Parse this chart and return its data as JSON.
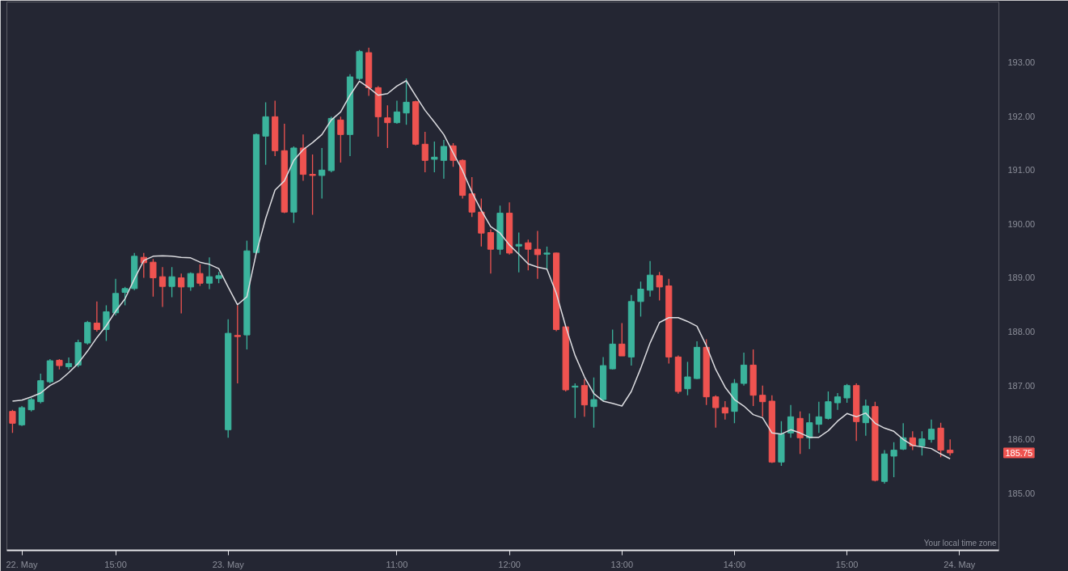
{
  "chart_data": {
    "type": "candlestick",
    "categories": [
      null,
      "22. May",
      null,
      null,
      null,
      null,
      null,
      null,
      null,
      null,
      null,
      "15:00",
      null,
      null,
      null,
      null,
      null,
      null,
      null,
      null,
      null,
      null,
      null,
      "23. May",
      null,
      null,
      null,
      null,
      null,
      null,
      null,
      null,
      null,
      null,
      null,
      null,
      null,
      null,
      null,
      null,
      null,
      "11:00",
      null,
      null,
      null,
      null,
      null,
      null,
      null,
      null,
      null,
      null,
      null,
      "12:00",
      null,
      null,
      null,
      null,
      null,
      null,
      null,
      null,
      null,
      null,
      null,
      "13:00",
      null,
      null,
      null,
      null,
      null,
      null,
      null,
      null,
      null,
      null,
      null,
      "14:00",
      null,
      null,
      null,
      null,
      null,
      null,
      null,
      null,
      null,
      null,
      null,
      "15:00",
      null,
      null,
      null,
      null,
      null,
      null,
      null,
      null,
      null,
      null,
      null,
      "24. May"
    ],
    "ohlc": [
      [
        186.52,
        186.55,
        186.12,
        186.3
      ],
      [
        186.27,
        186.62,
        186.25,
        186.59
      ],
      [
        186.55,
        186.77,
        186.52,
        186.74
      ],
      [
        186.7,
        187.22,
        186.67,
        187.09
      ],
      [
        187.07,
        187.49,
        187.04,
        187.46
      ],
      [
        187.47,
        187.49,
        187.3,
        187.37
      ],
      [
        187.35,
        187.52,
        187.3,
        187.41
      ],
      [
        187.38,
        187.85,
        187.34,
        187.8
      ],
      [
        187.79,
        188.2,
        187.76,
        188.17
      ],
      [
        188.16,
        188.56,
        188.0,
        188.04
      ],
      [
        188.04,
        188.49,
        187.83,
        188.37
      ],
      [
        188.35,
        188.98,
        188.3,
        188.71
      ],
      [
        188.73,
        188.83,
        188.49,
        188.8
      ],
      [
        188.8,
        189.46,
        188.77,
        189.4
      ],
      [
        189.38,
        189.46,
        189.0,
        189.28
      ],
      [
        189.29,
        189.35,
        188.65,
        189.0
      ],
      [
        189.02,
        189.2,
        188.46,
        188.84
      ],
      [
        188.84,
        189.2,
        188.64,
        189.02
      ],
      [
        189.0,
        189.08,
        188.34,
        188.83
      ],
      [
        188.83,
        189.1,
        188.76,
        189.08
      ],
      [
        189.08,
        189.25,
        188.85,
        188.9
      ],
      [
        188.9,
        189.38,
        188.79,
        189.02
      ],
      [
        188.99,
        189.11,
        188.9,
        189.04
      ],
      [
        186.18,
        188.23,
        186.03,
        187.97
      ],
      [
        187.93,
        188.49,
        187.04,
        187.91
      ],
      [
        187.94,
        189.69,
        187.67,
        189.5
      ],
      [
        189.47,
        191.68,
        189.45,
        191.66
      ],
      [
        191.63,
        192.26,
        191.1,
        191.99
      ],
      [
        191.99,
        192.29,
        191.26,
        191.36
      ],
      [
        191.36,
        191.86,
        190.2,
        190.22
      ],
      [
        190.22,
        191.44,
        190.02,
        191.41
      ],
      [
        191.41,
        191.66,
        190.8,
        190.92
      ],
      [
        190.92,
        191.29,
        190.17,
        190.9
      ],
      [
        190.9,
        191.41,
        190.47,
        191.0
      ],
      [
        190.99,
        191.99,
        190.96,
        191.96
      ],
      [
        191.93,
        191.99,
        191.14,
        191.66
      ],
      [
        191.66,
        192.78,
        191.26,
        192.73
      ],
      [
        192.7,
        193.23,
        192.67,
        193.2
      ],
      [
        193.18,
        193.27,
        192.38,
        192.53
      ],
      [
        192.53,
        192.56,
        191.62,
        191.99
      ],
      [
        191.97,
        192.2,
        191.41,
        191.88
      ],
      [
        191.88,
        192.29,
        191.86,
        192.08
      ],
      [
        192.06,
        192.7,
        191.84,
        192.26
      ],
      [
        192.27,
        192.29,
        191.46,
        191.48
      ],
      [
        191.48,
        191.71,
        190.96,
        191.18
      ],
      [
        191.2,
        191.53,
        190.96,
        191.24
      ],
      [
        191.18,
        191.56,
        190.84,
        191.44
      ],
      [
        191.45,
        191.5,
        191.06,
        191.18
      ],
      [
        191.18,
        191.2,
        190.47,
        190.53
      ],
      [
        190.56,
        190.87,
        190.13,
        190.22
      ],
      [
        190.22,
        190.47,
        189.58,
        189.83
      ],
      [
        189.84,
        189.9,
        189.08,
        189.53
      ],
      [
        189.53,
        190.34,
        189.43,
        190.2
      ],
      [
        190.2,
        190.4,
        189.43,
        189.46
      ],
      [
        189.59,
        189.84,
        189.1,
        189.62
      ],
      [
        189.65,
        189.71,
        189.14,
        189.53
      ],
      [
        189.53,
        189.87,
        188.98,
        189.43
      ],
      [
        189.44,
        189.58,
        189.16,
        189.46
      ],
      [
        189.46,
        189.47,
        188.01,
        188.04
      ],
      [
        188.09,
        188.09,
        186.89,
        186.92
      ],
      [
        186.97,
        187.04,
        186.4,
        186.99
      ],
      [
        187.0,
        187.12,
        186.42,
        186.64
      ],
      [
        186.61,
        187.15,
        186.22,
        186.74
      ],
      [
        186.74,
        187.53,
        186.71,
        187.37
      ],
      [
        187.31,
        188.04,
        187.3,
        187.77
      ],
      [
        187.77,
        188.16,
        187.55,
        187.55
      ],
      [
        187.53,
        188.68,
        187.37,
        188.56
      ],
      [
        188.56,
        188.93,
        188.28,
        188.79
      ],
      [
        188.77,
        189.31,
        188.65,
        189.05
      ],
      [
        189.04,
        189.11,
        188.58,
        188.83
      ],
      [
        188.85,
        188.98,
        187.41,
        187.53
      ],
      [
        187.53,
        187.56,
        186.85,
        186.89
      ],
      [
        186.94,
        187.44,
        186.82,
        187.16
      ],
      [
        187.13,
        187.82,
        187.12,
        187.71
      ],
      [
        187.71,
        187.86,
        186.64,
        186.79
      ],
      [
        186.79,
        186.82,
        186.22,
        186.59
      ],
      [
        186.59,
        186.71,
        186.37,
        186.49
      ],
      [
        186.52,
        187.12,
        186.3,
        187.04
      ],
      [
        187.04,
        187.61,
        187.0,
        187.38
      ],
      [
        187.38,
        187.67,
        186.62,
        186.82
      ],
      [
        186.82,
        187.0,
        186.42,
        186.7
      ],
      [
        186.71,
        186.82,
        185.56,
        185.58
      ],
      [
        185.58,
        186.34,
        185.51,
        186.1
      ],
      [
        186.12,
        186.64,
        186.03,
        186.42
      ],
      [
        186.39,
        186.52,
        185.73,
        186.03
      ],
      [
        186.03,
        186.48,
        185.82,
        186.31
      ],
      [
        186.28,
        186.7,
        186.12,
        186.42
      ],
      [
        186.39,
        186.89,
        186.37,
        186.7
      ],
      [
        186.68,
        186.86,
        186.55,
        186.79
      ],
      [
        186.77,
        187.03,
        186.68,
        187.0
      ],
      [
        187.0,
        187.04,
        185.97,
        186.33
      ],
      [
        186.31,
        186.74,
        186.07,
        186.62
      ],
      [
        186.61,
        186.7,
        185.22,
        185.24
      ],
      [
        185.22,
        185.8,
        185.18,
        185.73
      ],
      [
        185.69,
        185.95,
        185.3,
        185.8
      ],
      [
        185.82,
        186.3,
        185.8,
        186.03
      ],
      [
        186.03,
        186.15,
        185.8,
        185.88
      ],
      [
        185.88,
        186.15,
        185.7,
        186.01
      ],
      [
        186.0,
        186.37,
        185.94,
        186.19
      ],
      [
        186.21,
        186.31,
        185.67,
        185.8
      ],
      [
        185.8,
        186.0,
        185.7,
        185.75
      ],
      null
    ],
    "colors": [
      "#ef5350",
      "#3bb39c",
      "#3bb39c",
      "#3bb39c",
      "#3bb39c",
      "#ef5350",
      "#3bb39c",
      "#3bb39c",
      "#3bb39c",
      "#ef5350",
      "#3bb39c",
      "#3bb39c",
      "#3bb39c",
      "#3bb39c",
      "#ef5350",
      "#ef5350",
      "#ef5350",
      "#3bb39c",
      "#ef5350",
      "#3bb39c",
      "#ef5350",
      "#3bb39c",
      "#3bb39c",
      "#3bb39c",
      "#ef5350",
      "#3bb39c",
      "#3bb39c",
      "#3bb39c",
      "#ef5350",
      "#ef5350",
      "#3bb39c",
      "#ef5350",
      "#ef5350",
      "#3bb39c",
      "#3bb39c",
      "#ef5350",
      "#3bb39c",
      "#3bb39c",
      "#ef5350",
      "#ef5350",
      "#ef5350",
      "#3bb39c",
      "#3bb39c",
      "#ef5350",
      "#ef5350",
      "#3bb39c",
      "#3bb39c",
      "#ef5350",
      "#ef5350",
      "#ef5350",
      "#ef5350",
      "#ef5350",
      "#3bb39c",
      "#ef5350",
      "#3bb39c",
      "#ef5350",
      "#ef5350",
      "#3bb39c",
      "#ef5350",
      "#ef5350",
      "#3bb39c",
      "#ef5350",
      "#3bb39c",
      "#3bb39c",
      "#3bb39c",
      "#ef5350",
      "#3bb39c",
      "#3bb39c",
      "#3bb39c",
      "#ef5350",
      "#ef5350",
      "#ef5350",
      "#3bb39c",
      "#3bb39c",
      "#ef5350",
      "#ef5350",
      "#ef5350",
      "#3bb39c",
      "#3bb39c",
      "#ef5350",
      "#ef5350",
      "#ef5350",
      "#3bb39c",
      "#3bb39c",
      "#ef5350",
      "#3bb39c",
      "#3bb39c",
      "#3bb39c",
      "#3bb39c",
      "#3bb39c",
      "#ef5350",
      "#3bb39c",
      "#ef5350",
      "#3bb39c",
      "#3bb39c",
      "#3bb39c",
      "#ef5350",
      "#3bb39c",
      "#3bb39c",
      "#ef5350",
      "#ef5350",
      null
    ],
    "series": [
      {
        "type": "line",
        "color": "#dcdce0",
        "values": [
          186.71,
          186.73,
          186.79,
          186.86,
          187.0,
          187.09,
          187.24,
          187.41,
          187.64,
          187.89,
          188.11,
          188.38,
          188.61,
          188.98,
          189.32,
          189.4,
          189.41,
          189.4,
          189.38,
          189.37,
          189.29,
          189.25,
          189.17,
          188.83,
          188.5,
          188.65,
          189.46,
          190.1,
          190.63,
          190.8,
          191.18,
          191.38,
          191.51,
          191.66,
          191.93,
          192.08,
          192.39,
          192.65,
          192.53,
          192.39,
          192.42,
          192.56,
          192.66,
          192.38,
          192.11,
          191.89,
          191.66,
          191.32,
          190.99,
          190.59,
          190.25,
          189.95,
          189.83,
          189.61,
          189.44,
          189.26,
          189.2,
          189.16,
          188.71,
          188.1,
          187.56,
          187.16,
          186.85,
          186.71,
          186.67,
          186.62,
          186.89,
          187.32,
          187.79,
          188.17,
          188.26,
          188.26,
          188.19,
          188.1,
          187.74,
          187.3,
          186.97,
          186.74,
          186.62,
          186.46,
          186.4,
          186.12,
          186.1,
          186.18,
          186.12,
          186.04,
          186.04,
          186.16,
          186.34,
          186.48,
          186.42,
          186.49,
          186.3,
          186.21,
          186.15,
          186.0,
          185.89,
          185.86,
          185.83,
          185.73,
          185.64,
          null
        ]
      }
    ],
    "ylim": [
      183.94,
      194.12
    ],
    "yticks": [
      {
        "value": 185,
        "label": "185.00"
      },
      {
        "value": 186,
        "label": "186.00"
      },
      {
        "value": 187,
        "label": "187.00"
      },
      {
        "value": 188,
        "label": "188.00"
      },
      {
        "value": 189,
        "label": "189.00"
      },
      {
        "value": 190,
        "label": "190.00"
      },
      {
        "value": 191,
        "label": "191.00"
      },
      {
        "value": 192,
        "label": "192.00"
      },
      {
        "value": 193,
        "label": "193.00"
      }
    ],
    "annotations": [
      "Your local time zone",
      "185.75"
    ],
    "line_style": "solid"
  }
}
